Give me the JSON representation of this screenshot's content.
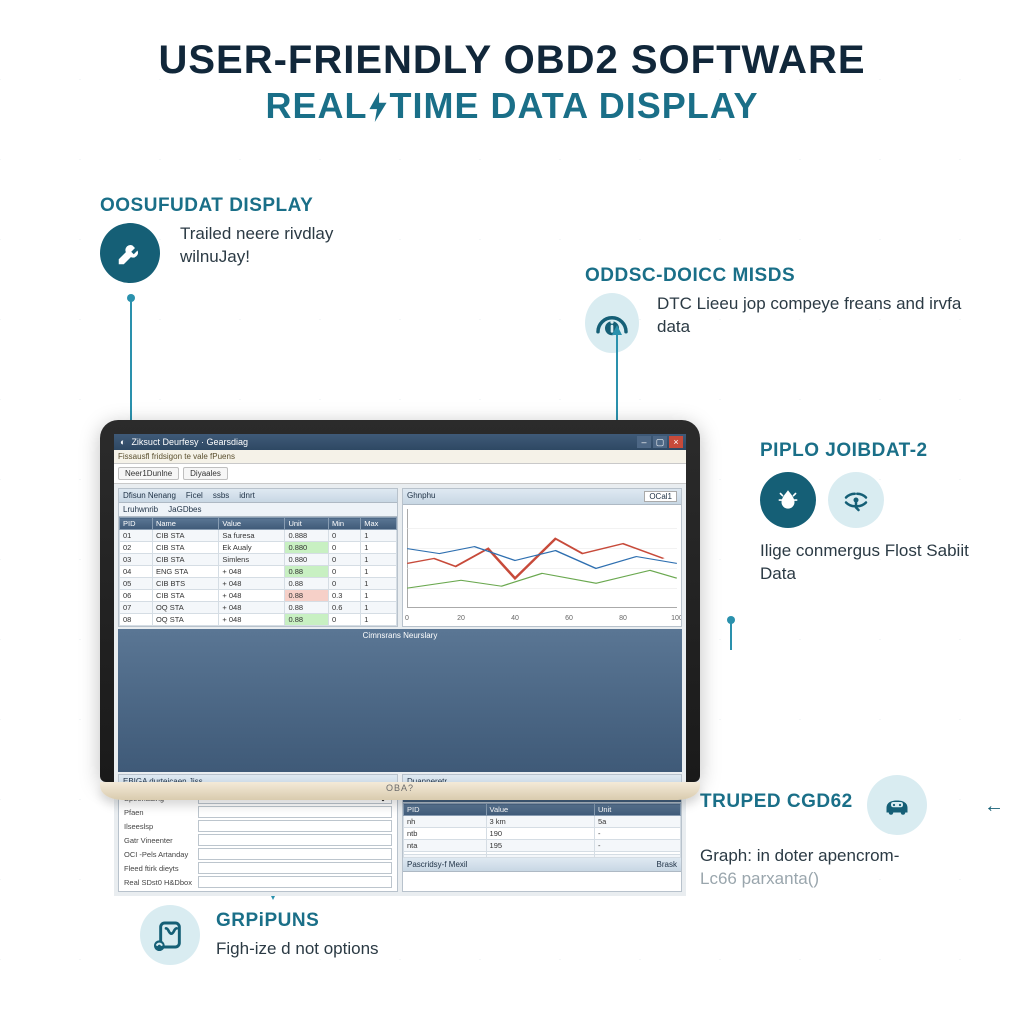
{
  "heading": {
    "line1": "USER-FRIENDLY OBD2 SOFTWARE",
    "line2_a": "REAL",
    "line2_b": "TIME DATA DISPLAY",
    "color_main": "#11273a",
    "color_sub": "#1a6f88"
  },
  "features": {
    "tl": {
      "title": "OOSUFUDAT DISPLAY",
      "body": "Trailed neere rivdlay wilnuJay!",
      "icon": "wrench-icon",
      "icon_bg": "#155f76",
      "icon_fg": "#ffffff"
    },
    "tr": {
      "title": "ODDSC-DOICC MISDS",
      "body": "DTC Lieeu jop compeye freans and irvfa data",
      "icon": "gauge-info-icon",
      "icon_bg": "#d9ecf1",
      "icon_fg": "#155f76"
    },
    "r2": {
      "title": "PIPLO JOIBDAT-2",
      "body": "Ilige conmergus Flost Sabiit Data",
      "icons": [
        "droplet-icon",
        "signal-icon"
      ]
    },
    "br": {
      "title": "TRUPED CGD62",
      "body1": "Graph: in doter apencrom-",
      "body2": "Lc66 parxanta()",
      "icon": "car-icon"
    },
    "bl": {
      "title": "GRPiPUNS",
      "body": "Figh-ize d not options",
      "icon": "tablet-icon"
    }
  },
  "connectors": {
    "color": "#2a91ad"
  },
  "laptop": {
    "brand": "OBA?",
    "window": {
      "title_icon": "app-icon",
      "title": "Ziksuct Deurfesy  ·  Gearsdiag",
      "ribbon": "Fissausfl fridsigon te vale fPuens",
      "toolbar_buttons": [
        "Neer1Dunlne",
        "Diyaales"
      ],
      "close_color": "#c74a3a",
      "chrome_color": "#3f5a78"
    },
    "middle_bar": "Cimnsrans Neurslary",
    "pane_a": {
      "headers": [
        "Dfisun Nenang",
        "Ficel",
        "ssbs",
        "idnrt"
      ],
      "sub_headers": [
        "Lruhwnrib",
        "JaGDbes"
      ],
      "columns": [
        "PID",
        "Name",
        "Value",
        "Unit",
        "Min",
        "Max"
      ],
      "rows": [
        [
          "01",
          "CIB STA",
          "Sa furesa",
          "0.888",
          "0",
          "1",
          ""
        ],
        [
          "02",
          "CIB STA",
          "Ek Aualy",
          "0.880",
          "0",
          "1",
          "g"
        ],
        [
          "03",
          "CIB STA",
          "Simlens",
          "0.880",
          "0",
          "1",
          ""
        ],
        [
          "04",
          "ENG STA",
          "+ 048",
          "0.88",
          "0",
          "1",
          "g"
        ],
        [
          "05",
          "CIB BTS",
          "+ 048",
          "0.88",
          "0",
          "1",
          ""
        ],
        [
          "06",
          "CIB STA",
          "+ 048",
          "0.88",
          "0.3",
          "1",
          "r"
        ],
        [
          "07",
          "OQ STA",
          "+ 048",
          "0.88",
          "0.6",
          "1",
          ""
        ],
        [
          "08",
          "OQ STA",
          "+ 048",
          "0.88",
          "0",
          "1",
          "g"
        ]
      ]
    },
    "pane_b": {
      "title": "Ghnphu",
      "right_badge": "OCal1",
      "chart": {
        "type": "line",
        "xlim": [
          0,
          100
        ],
        "ylim": [
          0,
          100
        ],
        "series": [
          {
            "color": "#c74a3a",
            "width": 1.2,
            "points": [
              [
                0,
                45
              ],
              [
                10,
                50
              ],
              [
                18,
                42
              ],
              [
                30,
                60
              ],
              [
                40,
                30
              ],
              [
                55,
                70
              ],
              [
                65,
                55
              ],
              [
                80,
                65
              ],
              [
                95,
                50
              ]
            ]
          },
          {
            "color": "#2e6fb0",
            "width": 1.0,
            "points": [
              [
                0,
                60
              ],
              [
                12,
                55
              ],
              [
                25,
                62
              ],
              [
                40,
                48
              ],
              [
                55,
                58
              ],
              [
                70,
                40
              ],
              [
                85,
                52
              ],
              [
                100,
                45
              ]
            ]
          },
          {
            "color": "#6aa84f",
            "width": 1.0,
            "points": [
              [
                0,
                20
              ],
              [
                20,
                28
              ],
              [
                35,
                22
              ],
              [
                50,
                35
              ],
              [
                70,
                25
              ],
              [
                90,
                38
              ],
              [
                100,
                30
              ]
            ]
          }
        ],
        "xticks": [
          "0",
          "20",
          "40",
          "60",
          "80",
          "100"
        ],
        "grid_color": "#e6e6e6"
      }
    },
    "pane_c": {
      "title": "Duanperetr",
      "headers": [
        "Fferallzanlkss",
        "",
        "Rireany"
      ],
      "columns": [
        "PID",
        "Value",
        "Unit"
      ],
      "rows": [
        [
          "nh",
          "3 km",
          "5a"
        ],
        [
          "ntb",
          "190",
          "-"
        ],
        [
          "nta",
          "195",
          "-"
        ],
        [
          "",
          "",
          ""
        ],
        [
          "",
          "",
          ""
        ]
      ]
    },
    "pane_d": {
      "title": "EBIGA durteicaen Jiss",
      "fields": [
        {
          "label": "Speerlading",
          "type": "select",
          "value": ""
        },
        {
          "label": "Pfaen",
          "type": "text",
          "value": ""
        },
        {
          "label": "Ilseeslsp",
          "type": "text",
          "value": ""
        },
        {
          "label": "Gatr Vineenter",
          "type": "text",
          "value": ""
        },
        {
          "label": "OCI -Pels Artanday",
          "type": "text",
          "value": ""
        },
        {
          "label": "Fleed ftirk dieyts",
          "type": "text",
          "value": ""
        },
        {
          "label": "Real SDst0 H&Dbox",
          "type": "text",
          "value": ""
        }
      ],
      "second_headers": [
        "Pascridsy-f Mexil",
        "",
        "Brask"
      ]
    }
  }
}
